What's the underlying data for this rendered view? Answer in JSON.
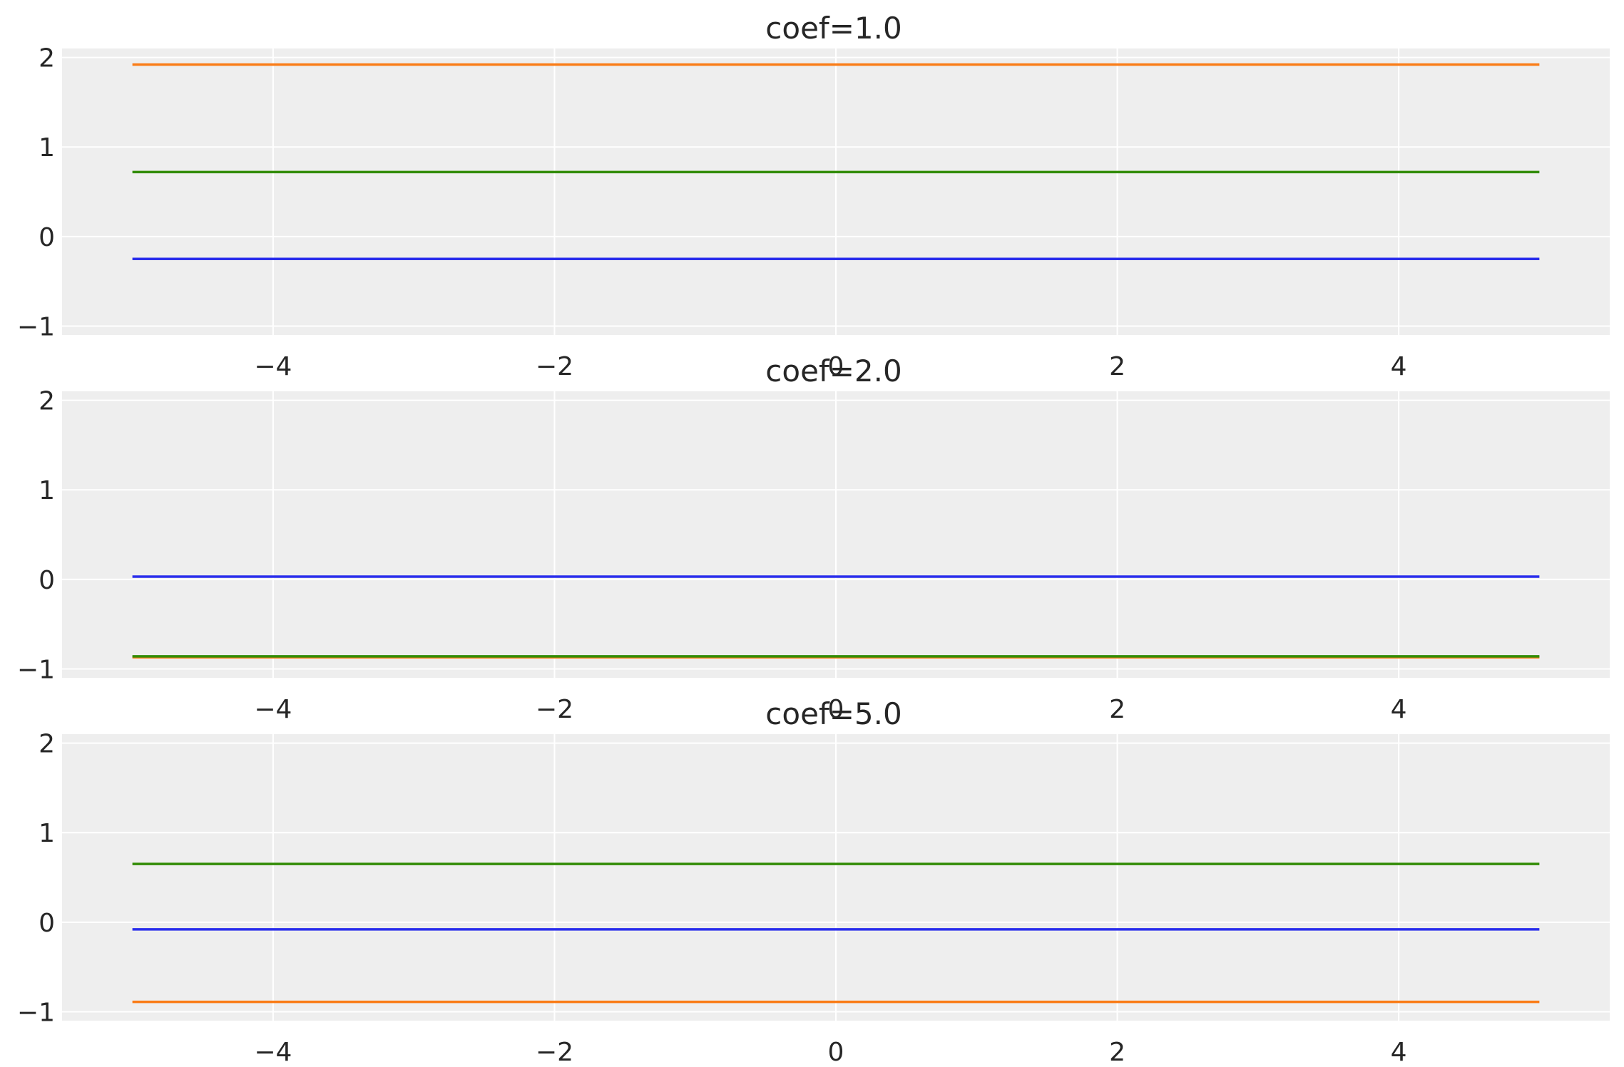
{
  "chart_data": [
    {
      "type": "line",
      "title": "coef=1.0",
      "xlabel": "",
      "ylabel": "",
      "xlim": [
        -5.5,
        5.5
      ],
      "ylim": [
        -1.1,
        2.1
      ],
      "xticks": [
        -4,
        -2,
        0,
        2,
        4
      ],
      "yticks": [
        -1,
        0,
        1,
        2
      ],
      "grid": true,
      "series": [
        {
          "color": "#2a2eec",
          "x": [
            -5,
            5
          ],
          "y": [
            -0.25,
            -0.25
          ]
        },
        {
          "color": "#fa7c17",
          "x": [
            -5,
            5
          ],
          "y": [
            1.92,
            1.92
          ]
        },
        {
          "color": "#328c06",
          "x": [
            -5,
            5
          ],
          "y": [
            0.72,
            0.72
          ]
        }
      ]
    },
    {
      "type": "line",
      "title": "coef=2.0",
      "xlabel": "",
      "ylabel": "",
      "xlim": [
        -5.5,
        5.5
      ],
      "ylim": [
        -1.1,
        2.1
      ],
      "xticks": [
        -4,
        -2,
        0,
        2,
        4
      ],
      "yticks": [
        -1,
        0,
        1,
        2
      ],
      "grid": true,
      "series": [
        {
          "color": "#2a2eec",
          "x": [
            -5,
            5
          ],
          "y": [
            0.03,
            0.03
          ]
        },
        {
          "color": "#fa7c17",
          "x": [
            -5,
            5
          ],
          "y": [
            -0.87,
            -0.87
          ]
        },
        {
          "color": "#328c06",
          "x": [
            -5,
            5
          ],
          "y": [
            -0.86,
            -0.86
          ]
        }
      ]
    },
    {
      "type": "line",
      "title": "coef=5.0",
      "xlabel": "",
      "ylabel": "",
      "xlim": [
        -5.5,
        5.5
      ],
      "ylim": [
        -1.1,
        2.1
      ],
      "xticks": [
        -4,
        -2,
        0,
        2,
        4
      ],
      "yticks": [
        -1,
        0,
        1,
        2
      ],
      "grid": true,
      "series": [
        {
          "color": "#2a2eec",
          "x": [
            -5,
            5
          ],
          "y": [
            -0.08,
            -0.08
          ]
        },
        {
          "color": "#fa7c17",
          "x": [
            -5,
            5
          ],
          "y": [
            -0.89,
            -0.89
          ]
        },
        {
          "color": "#328c06",
          "x": [
            -5,
            5
          ],
          "y": [
            0.65,
            0.65
          ]
        }
      ]
    }
  ],
  "colors": {
    "axes_background": "#eeeeee",
    "grid": "#ffffff",
    "text": "#262626"
  }
}
